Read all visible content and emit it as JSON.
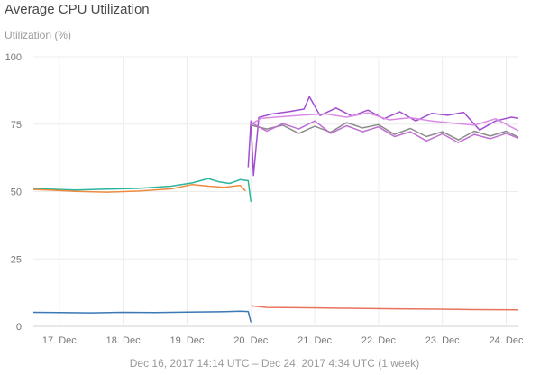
{
  "chart_data": {
    "type": "line",
    "title": "Average CPU Utilization",
    "ylabel": "Utilization (%)",
    "xlabel": "",
    "ylim": [
      0,
      100
    ],
    "yticks": [
      0,
      25,
      50,
      75,
      100
    ],
    "grid": true,
    "legend": "none",
    "x_domain": [
      "2017-12-16T14:14",
      "2017-12-24T04:34"
    ],
    "xticks": [
      {
        "date": "2017-12-17",
        "label": "17. Dec"
      },
      {
        "date": "2017-12-18",
        "label": "18. Dec"
      },
      {
        "date": "2017-12-19",
        "label": "19. Dec"
      },
      {
        "date": "2017-12-20",
        "label": "20. Dec"
      },
      {
        "date": "2017-12-21",
        "label": "21. Dec"
      },
      {
        "date": "2017-12-22",
        "label": "22. Dec"
      },
      {
        "date": "2017-12-23",
        "label": "23. Dec"
      },
      {
        "date": "2017-12-24",
        "label": "24. Dec"
      }
    ],
    "caption": "Dec 16, 2017 14:14 UTC – Dec 24, 2017 4:34 UTC (1 week)",
    "series": [
      {
        "color": "#3b78b4",
        "points": [
          [
            "2017-12-16T14:14",
            5.2
          ],
          [
            "2017-12-17T00:00",
            5.1
          ],
          [
            "2017-12-17T12:00",
            5.0
          ],
          [
            "2017-12-18T00:00",
            5.2
          ],
          [
            "2017-12-18T12:00",
            5.1
          ],
          [
            "2017-12-19T00:00",
            5.3
          ],
          [
            "2017-12-19T12:00",
            5.4
          ],
          [
            "2017-12-19T20:00",
            5.6
          ],
          [
            "2017-12-19T23:00",
            5.5
          ],
          [
            "2017-12-20T00:00",
            1.5
          ]
        ]
      },
      {
        "color": "#e8735c",
        "points": [
          [
            "2017-12-20T00:00",
            7.6
          ],
          [
            "2017-12-20T06:00",
            7.0
          ],
          [
            "2017-12-20T18:00",
            6.9
          ],
          [
            "2017-12-21T12:00",
            6.7
          ],
          [
            "2017-12-22T06:00",
            6.5
          ],
          [
            "2017-12-22T18:00",
            6.4
          ],
          [
            "2017-12-23T12:00",
            6.2
          ],
          [
            "2017-12-24T04:34",
            6.1
          ]
        ]
      },
      {
        "color": "#2bb59a",
        "points": [
          [
            "2017-12-16T14:14",
            51.3
          ],
          [
            "2017-12-16T20:00",
            50.9
          ],
          [
            "2017-12-17T06:00",
            50.6
          ],
          [
            "2017-12-17T18:00",
            50.9
          ],
          [
            "2017-12-18T06:00",
            51.2
          ],
          [
            "2017-12-18T18:00",
            52.0
          ],
          [
            "2017-12-19T02:00",
            53.2
          ],
          [
            "2017-12-19T08:00",
            54.8
          ],
          [
            "2017-12-19T12:00",
            53.6
          ],
          [
            "2017-12-19T16:00",
            53.0
          ],
          [
            "2017-12-19T20:00",
            54.4
          ],
          [
            "2017-12-19T23:00",
            54.0
          ],
          [
            "2017-12-20T00:00",
            46.2
          ]
        ]
      },
      {
        "color": "#ef8a3e",
        "points": [
          [
            "2017-12-16T14:14",
            50.8
          ],
          [
            "2017-12-16T20:00",
            50.6
          ],
          [
            "2017-12-17T06:00",
            50.1
          ],
          [
            "2017-12-17T18:00",
            49.8
          ],
          [
            "2017-12-18T06:00",
            50.2
          ],
          [
            "2017-12-18T18:00",
            51.0
          ],
          [
            "2017-12-19T02:00",
            52.6
          ],
          [
            "2017-12-19T08:00",
            52.0
          ],
          [
            "2017-12-19T14:00",
            51.6
          ],
          [
            "2017-12-19T20:00",
            52.3
          ],
          [
            "2017-12-19T22:00",
            50.2
          ]
        ]
      },
      {
        "color": "#a14fd0",
        "points": [
          [
            "2017-12-19T23:00",
            59.0
          ],
          [
            "2017-12-20T00:00",
            76.2
          ],
          [
            "2017-12-20T01:00",
            56.0
          ],
          [
            "2017-12-20T03:00",
            77.5
          ],
          [
            "2017-12-20T08:00",
            78.8
          ],
          [
            "2017-12-20T14:00",
            79.6
          ],
          [
            "2017-12-20T20:00",
            80.6
          ],
          [
            "2017-12-20T22:00",
            85.2
          ],
          [
            "2017-12-21T02:00",
            78.2
          ],
          [
            "2017-12-21T08:00",
            81.0
          ],
          [
            "2017-12-21T14:00",
            78.0
          ],
          [
            "2017-12-21T20:00",
            80.2
          ],
          [
            "2017-12-22T02:00",
            77.0
          ],
          [
            "2017-12-22T08:00",
            79.6
          ],
          [
            "2017-12-22T14:00",
            76.2
          ],
          [
            "2017-12-22T20:00",
            79.0
          ],
          [
            "2017-12-23T02:00",
            78.3
          ],
          [
            "2017-12-23T08:00",
            79.4
          ],
          [
            "2017-12-23T14:00",
            72.8
          ],
          [
            "2017-12-23T20:00",
            76.2
          ],
          [
            "2017-12-24T02:00",
            77.6
          ],
          [
            "2017-12-24T04:34",
            77.2
          ]
        ]
      },
      {
        "color": "#d98be6",
        "points": [
          [
            "2017-12-20T00:00",
            75.0
          ],
          [
            "2017-12-20T04:00",
            77.2
          ],
          [
            "2017-12-20T12:00",
            77.8
          ],
          [
            "2017-12-20T20:00",
            78.4
          ],
          [
            "2017-12-21T04:00",
            78.8
          ],
          [
            "2017-12-21T12:00",
            77.6
          ],
          [
            "2017-12-21T20:00",
            79.2
          ],
          [
            "2017-12-22T04:00",
            76.6
          ],
          [
            "2017-12-22T12:00",
            77.4
          ],
          [
            "2017-12-22T20:00",
            76.2
          ],
          [
            "2017-12-23T04:00",
            75.4
          ],
          [
            "2017-12-23T12:00",
            74.6
          ],
          [
            "2017-12-23T20:00",
            77.0
          ],
          [
            "2017-12-24T04:34",
            72.6
          ]
        ]
      },
      {
        "color": "#8c8c8c",
        "points": [
          [
            "2017-12-20T00:00",
            74.6
          ],
          [
            "2017-12-20T06:00",
            73.2
          ],
          [
            "2017-12-20T12:00",
            74.6
          ],
          [
            "2017-12-20T18:00",
            71.6
          ],
          [
            "2017-12-21T00:00",
            74.2
          ],
          [
            "2017-12-21T06:00",
            72.0
          ],
          [
            "2017-12-21T12:00",
            75.6
          ],
          [
            "2017-12-21T18:00",
            73.6
          ],
          [
            "2017-12-22T00:00",
            74.8
          ],
          [
            "2017-12-22T06:00",
            71.2
          ],
          [
            "2017-12-22T12:00",
            73.4
          ],
          [
            "2017-12-22T18:00",
            70.4
          ],
          [
            "2017-12-23T00:00",
            72.2
          ],
          [
            "2017-12-23T06:00",
            69.2
          ],
          [
            "2017-12-23T12:00",
            72.4
          ],
          [
            "2017-12-23T18:00",
            70.6
          ],
          [
            "2017-12-24T00:00",
            72.4
          ],
          [
            "2017-12-24T04:34",
            70.2
          ]
        ]
      },
      {
        "color": "#bf6fd2",
        "points": [
          [
            "2017-12-20T00:00",
            75.6
          ],
          [
            "2017-12-20T06:00",
            72.4
          ],
          [
            "2017-12-20T12:00",
            75.2
          ],
          [
            "2017-12-20T18:00",
            73.2
          ],
          [
            "2017-12-21T00:00",
            76.2
          ],
          [
            "2017-12-21T06:00",
            71.6
          ],
          [
            "2017-12-21T12:00",
            74.4
          ],
          [
            "2017-12-21T18:00",
            72.2
          ],
          [
            "2017-12-22T00:00",
            74.0
          ],
          [
            "2017-12-22T06:00",
            70.4
          ],
          [
            "2017-12-22T12:00",
            72.2
          ],
          [
            "2017-12-22T18:00",
            68.8
          ],
          [
            "2017-12-23T00:00",
            71.4
          ],
          [
            "2017-12-23T06:00",
            68.2
          ],
          [
            "2017-12-23T12:00",
            71.2
          ],
          [
            "2017-12-23T18:00",
            69.6
          ],
          [
            "2017-12-24T00:00",
            71.6
          ],
          [
            "2017-12-24T04:34",
            69.8
          ]
        ]
      }
    ]
  }
}
